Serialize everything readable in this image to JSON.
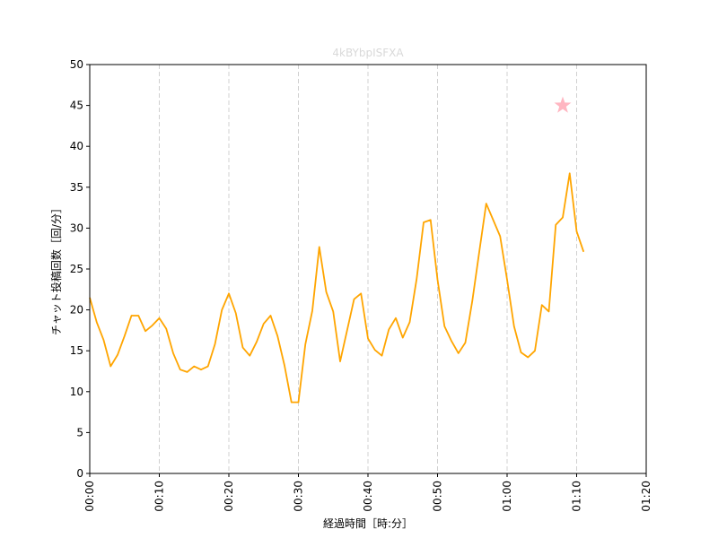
{
  "chart_data": {
    "type": "line",
    "title": "4kBYbpISFXA",
    "xlabel": "経過時間［時:分］",
    "ylabel": "チャット投稿回数［回/分］",
    "x_unit": "minutes",
    "xlim": [
      0,
      80
    ],
    "ylim": [
      0,
      50
    ],
    "x_ticks": [
      0,
      10,
      20,
      30,
      40,
      50,
      60,
      70,
      80
    ],
    "x_tick_labels": [
      "00:00",
      "00:10",
      "00:20",
      "00:30",
      "00:40",
      "00:50",
      "01:00",
      "01:10",
      "01:20"
    ],
    "y_ticks": [
      0,
      5,
      10,
      15,
      20,
      25,
      30,
      35,
      40,
      45,
      50
    ],
    "y_tick_labels": [
      "0",
      "5",
      "10",
      "15",
      "20",
      "25",
      "30",
      "35",
      "40",
      "45",
      "50"
    ],
    "vertical_grid": true,
    "horizontal_grid": false,
    "series": [
      {
        "color": "#ffa500",
        "x": [
          0,
          1,
          2,
          3,
          4,
          5,
          6,
          7,
          8,
          9,
          10,
          11,
          12,
          13,
          14,
          15,
          16,
          17,
          18,
          19,
          20,
          21,
          22,
          23,
          24,
          25,
          26,
          27,
          28,
          29,
          30,
          31,
          32,
          33,
          34,
          35,
          36,
          37,
          38,
          39,
          40,
          41,
          42,
          43,
          44,
          45,
          46,
          47,
          48,
          49,
          50,
          51,
          52,
          53,
          54,
          55,
          56,
          57,
          58,
          59,
          60,
          61,
          62,
          63,
          64,
          65,
          66,
          67,
          68,
          69,
          70,
          71
        ],
        "values": [
          21.5,
          18.5,
          16.3,
          13.1,
          14.5,
          16.8,
          19.3,
          19.3,
          17.4,
          18.1,
          19.0,
          17.7,
          14.7,
          12.7,
          12.4,
          13.1,
          12.7,
          13.1,
          15.8,
          20.0,
          22.0,
          19.6,
          15.4,
          14.4,
          16.1,
          18.3,
          19.3,
          16.8,
          13.2,
          8.7,
          8.7,
          15.8,
          19.9,
          27.7,
          22.2,
          19.8,
          13.7,
          17.5,
          21.3,
          22.0,
          16.5,
          15.1,
          14.4,
          17.6,
          19.0,
          16.6,
          18.5,
          23.8,
          30.7,
          31.0,
          23.7,
          18.0,
          16.2,
          14.7,
          16.0,
          21.1,
          27.1,
          33.0,
          31.0,
          29.0,
          23.7,
          18.0,
          14.8,
          14.2,
          15.0,
          20.6,
          19.8,
          30.4,
          31.3,
          36.7,
          29.6,
          27.1
        ]
      }
    ],
    "marker": {
      "shape": "star",
      "x": 68,
      "y": 45,
      "color": "#ffb6c1"
    }
  }
}
